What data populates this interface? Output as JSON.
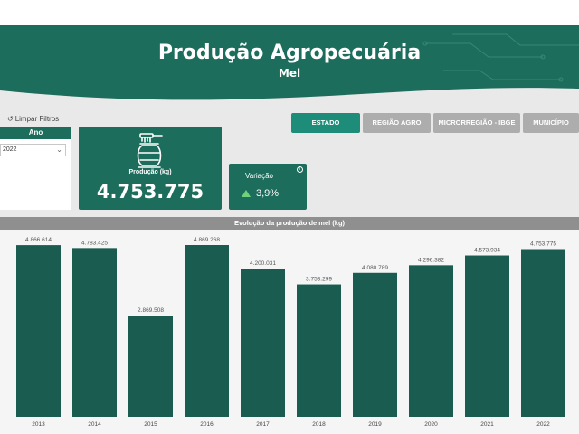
{
  "header": {
    "title": "Produção Agropecuária",
    "subtitle": "Mel"
  },
  "toolbar": {
    "clear_filters_label": "Limpar Filtros",
    "clear_filters_icon": "refresh-icon"
  },
  "slicer": {
    "header": "Ano",
    "selected": "2022"
  },
  "production_card": {
    "label": "Produção (kg)",
    "value": "4.753.775",
    "icon": "honey-pot-icon"
  },
  "variation_card": {
    "label": "Variação",
    "value": "3,9%",
    "icon": "info-icon",
    "trend": "up"
  },
  "nav": {
    "tabs": [
      {
        "label": "ESTADO"
      },
      {
        "label": "REGIÃO AGRO"
      },
      {
        "label": "MICRORREGIÃO - IBGE"
      },
      {
        "label": "MUNICÍPIO"
      }
    ]
  },
  "colors": {
    "brand": "#1d6d5c",
    "bar": "#1a5c4f",
    "active_tab": "#1d8c78",
    "inactive_tab": "#adadad",
    "trend_up": "#6fd27a"
  },
  "chart_data": {
    "type": "bar",
    "title": "Evolução da produção de mel (kg)",
    "categories": [
      "2013",
      "2014",
      "2015",
      "2016",
      "2017",
      "2018",
      "2019",
      "2020",
      "2021",
      "2022"
    ],
    "values": [
      4866614,
      4783425,
      2869508,
      4869268,
      4200031,
      3753299,
      4080789,
      4296382,
      4573934,
      4753775
    ],
    "data_labels": [
      "4.866.614",
      "4.783.425",
      "2.869.508",
      "4.869.268",
      "4.200.031",
      "3.753.299",
      "4.080.789",
      "4.296.382",
      "4.573.934",
      "4.753.775"
    ],
    "ylim": [
      0,
      4869268
    ],
    "grid": false,
    "legend": "none"
  }
}
